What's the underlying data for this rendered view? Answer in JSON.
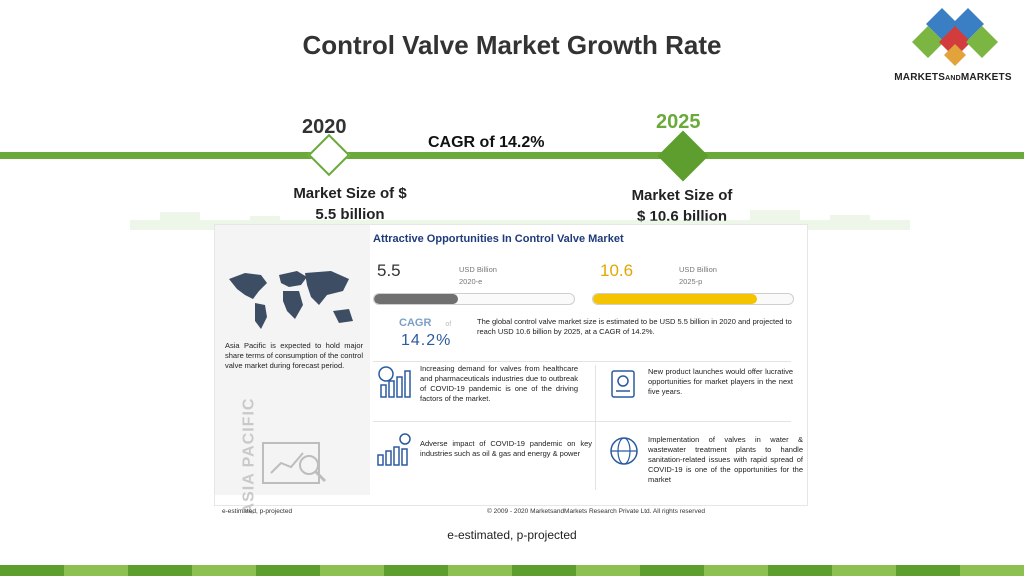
{
  "slide": {
    "title": "Control Valve Market Growth Rate",
    "bottom_note": "e-estimated, p-projected"
  },
  "logo": {
    "text_main": "MARKETS",
    "text_and": "AND",
    "text_end": "MARKETS",
    "colors": [
      "#3a7fc4",
      "#d23c3c",
      "#7bb642",
      "#e1a33a"
    ]
  },
  "timeline": {
    "year_start": "2020",
    "year_end": "2025",
    "cagr": "CAGR of 14.2%",
    "size_start_line1": "Market Size of $",
    "size_start_line2": "5.5 billion",
    "size_end_line1": "Market Size of",
    "size_end_line2": "$ 10.6 billion",
    "accent_color": "#6aaa3a"
  },
  "infographic": {
    "title": "Attractive Opportunities In Control Valve Market",
    "value_2020": "5.5",
    "unit_2020": "USD Billion",
    "tag_2020": "2020-e",
    "value_2025": "10.6",
    "unit_2025": "USD Billion",
    "tag_2025": "2025-p",
    "progress_2020": 0.42,
    "progress_2025": 0.82,
    "cagr_label": "CAGR",
    "cagr_of": "of",
    "cagr_value": "14.2%",
    "summary": "The global control valve market size is estimated to be USD 5.5 billion in 2020 and projected to reach USD 10.6 billion by 2025, at a CAGR of 14.2%.",
    "region_note": "Asia Pacific is expected to hold major share terms of consumption of the control valve market during forecast period.",
    "region_vertical": "ASIA PACIFIC",
    "driver_1": "Increasing demand for valves from healthcare and pharmaceuticals industries due to outbreak of COVID-19 pandemic is one of the driving factors of the market.",
    "driver_2": "New product launches would offer lucrative opportunities for market players in the next five years.",
    "driver_3": "Adverse impact of COVID-19 pandemic on key industries such as oil & gas and energy & power",
    "driver_4": "Implementation of valves in water & wastewater treatment plants to handle sanitation-related issues with rapid spread of COVID-19 is one of the opportunities for the market",
    "footer_left": "e-estimated, p-projected",
    "footer_right": "© 2009 - 2020 MarketsandMarkets Research Private Ltd. All rights reserved"
  }
}
